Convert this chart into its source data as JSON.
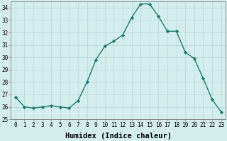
{
  "x": [
    0,
    1,
    2,
    3,
    4,
    5,
    6,
    7,
    8,
    9,
    10,
    11,
    12,
    13,
    14,
    15,
    16,
    17,
    18,
    19,
    20,
    21,
    22,
    23
  ],
  "y": [
    26.8,
    26.0,
    25.9,
    26.0,
    26.1,
    26.0,
    25.9,
    26.5,
    28.0,
    29.8,
    30.9,
    31.3,
    31.8,
    33.2,
    34.3,
    34.3,
    33.3,
    32.1,
    32.1,
    30.4,
    29.9,
    28.3,
    26.6,
    25.6
  ],
  "line_color": "#1a7a6e",
  "marker": "D",
  "markersize": 2.2,
  "linewidth": 1.0,
  "bg_color": "#d4eeee",
  "grid_color": "#b8d8d8",
  "xlabel": "Humidex (Indice chaleur)",
  "ylim": [
    25,
    34.5
  ],
  "yticks": [
    25,
    26,
    27,
    28,
    29,
    30,
    31,
    32,
    33,
    34
  ],
  "ytick_labels": [
    "25",
    "26",
    "27",
    "28",
    "29",
    "30",
    "31",
    "32",
    "33",
    "34"
  ],
  "xticks": [
    0,
    1,
    2,
    3,
    4,
    5,
    6,
    7,
    8,
    9,
    10,
    11,
    12,
    13,
    14,
    15,
    16,
    17,
    18,
    19,
    20,
    21,
    22,
    23
  ],
  "tick_fontsize": 5.5,
  "xlabel_fontsize": 7.5,
  "spine_color": "#888888"
}
